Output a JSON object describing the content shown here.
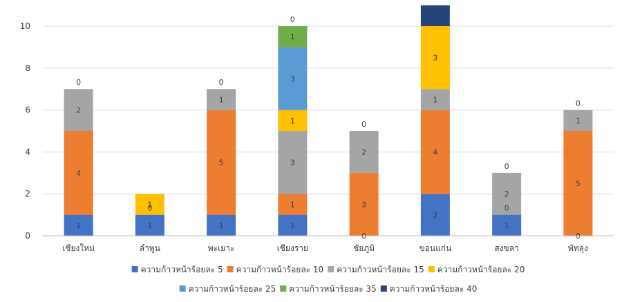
{
  "chart_data": {
    "type": "bar",
    "stacked": true,
    "title": "",
    "xlabel": "",
    "ylabel": "",
    "categories": [
      "เชียงใหม่",
      "ลำพูน",
      "พะเยาะ",
      "เชียงราย",
      "ชัยภูมิ",
      "ขอนแก่น",
      "สงขลา",
      "พัทลุง"
    ],
    "ylim": [
      0,
      10
    ],
    "yticks": [
      0,
      2,
      4,
      6,
      8,
      10
    ],
    "grid": true,
    "legend_position": "bottom",
    "series": [
      {
        "name": "ความก้าวหน้าร้อยละ 5",
        "color": "#4472C4",
        "values": [
          1,
          1,
          1,
          1,
          0,
          2,
          1,
          0
        ],
        "labels": [
          "1",
          "1",
          "1",
          "1",
          "0",
          "2",
          "1",
          "0"
        ]
      },
      {
        "name": "ความก้าวหน้าร้อยละ 10",
        "color": "#ED7D31",
        "values": [
          4,
          0,
          5,
          1,
          3,
          4,
          0,
          5
        ],
        "labels": [
          "4",
          "0",
          "5",
          "1",
          "3",
          "4",
          "0",
          "5"
        ]
      },
      {
        "name": "ความก้าวหน้าร้อยละ 15",
        "color": "#A5A5A5",
        "values": [
          2,
          0,
          1,
          3,
          2,
          1,
          2,
          1
        ],
        "labels": [
          "2",
          "",
          "1",
          "3",
          "2",
          "1",
          "2",
          "1"
        ]
      },
      {
        "name": "ความก้าวหน้าร้อยละ 20",
        "color": "#FFC000",
        "values": [
          0,
          1,
          0,
          1,
          0,
          3,
          0,
          0
        ],
        "labels": [
          "0",
          "1",
          "0",
          "1",
          "0",
          "3",
          "0",
          "0"
        ]
      },
      {
        "name": "ความก้าวหน้าร้อยละ 25",
        "color": "#5B9BD5",
        "values": [
          0,
          0,
          0,
          3,
          0,
          0,
          0,
          0
        ],
        "labels": [
          "",
          "",
          "",
          "3",
          "",
          "",
          "",
          ""
        ]
      },
      {
        "name": "ความก้าวหน้าร้อยละ 35",
        "color": "#70AD47",
        "values": [
          0,
          0,
          0,
          1,
          0,
          0,
          0,
          0
        ],
        "labels": [
          "",
          "",
          "",
          "1",
          "",
          "",
          "",
          ""
        ]
      },
      {
        "name": "ความก้าวหน้าร้อยละ 40",
        "color": "#264478",
        "values": [
          0,
          0,
          0,
          0,
          0,
          1,
          0,
          0
        ],
        "labels": [
          "",
          "",
          "",
          "0",
          "",
          "",
          "",
          ""
        ]
      }
    ]
  }
}
